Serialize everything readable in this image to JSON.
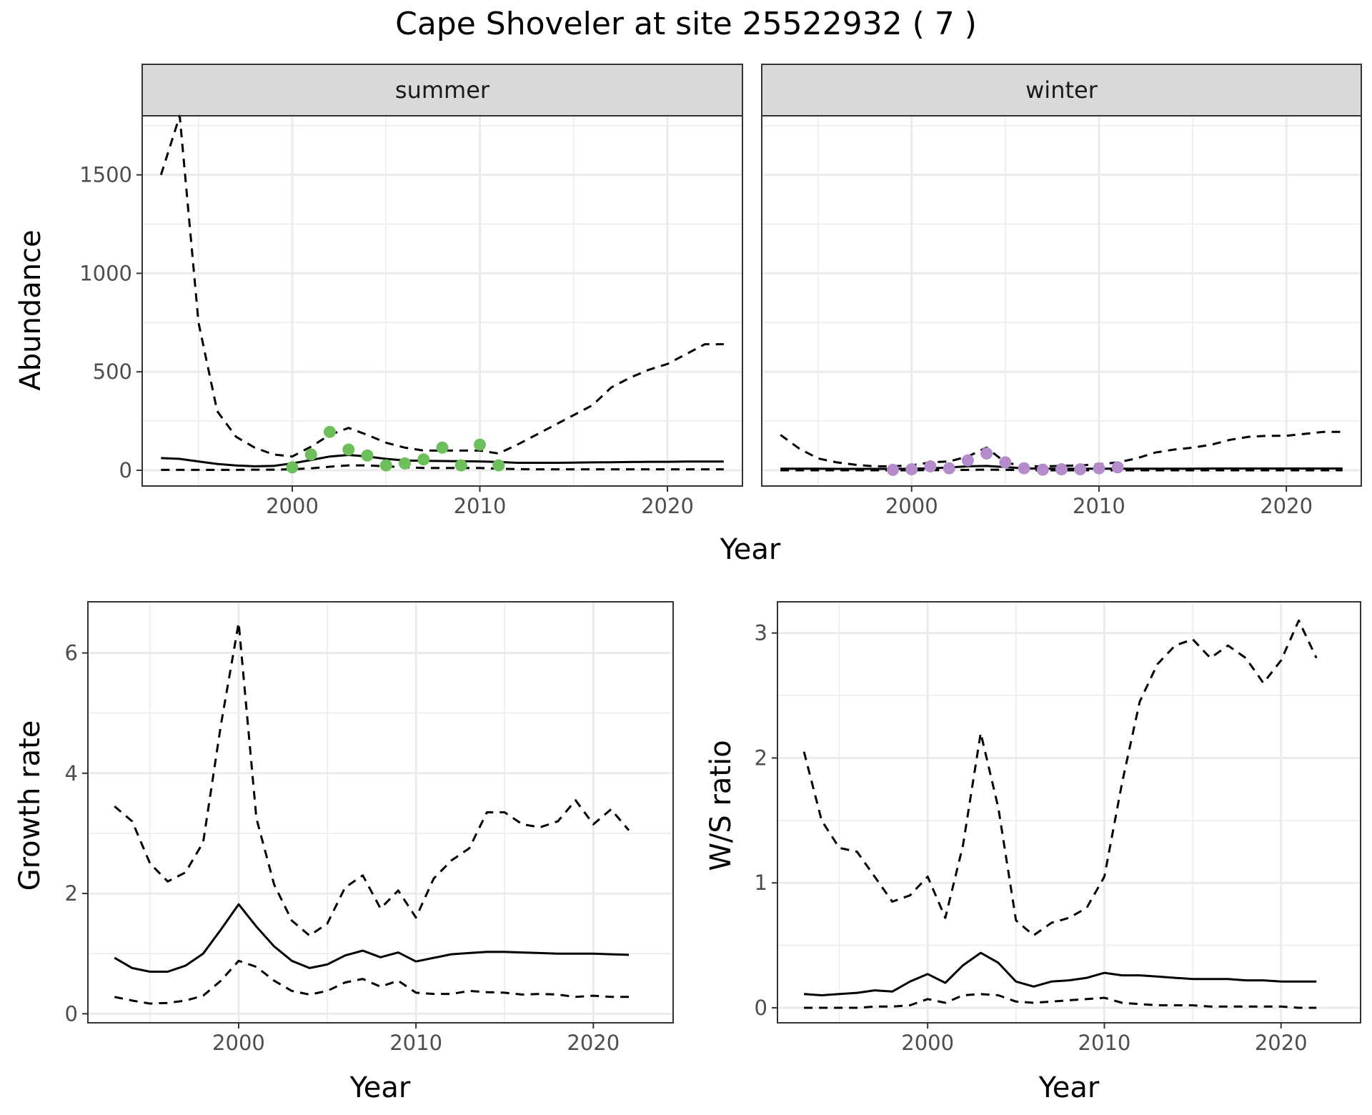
{
  "title": "Cape Shoveler at site 25522932 ( 7 )",
  "colors": {
    "summer_points": "#6cbf5a",
    "winter_points": "#b48ccb",
    "lines": "#000000",
    "grid": "#ebebeb",
    "strip_fill": "#d9d9d9"
  },
  "chart_data": [
    {
      "id": "summer",
      "type": "line",
      "facet_label": "summer",
      "xlabel": "Year",
      "ylabel": "Abundance",
      "xlim": [
        1992,
        2024
      ],
      "ylim": [
        -80,
        1800
      ],
      "xticks": [
        2000,
        2010,
        2020
      ],
      "yticks": [
        0,
        500,
        1000,
        1500
      ],
      "grid": true,
      "x": [
        1993,
        1994,
        1995,
        1996,
        1997,
        1998,
        1999,
        2000,
        2001,
        2002,
        2003,
        2004,
        2005,
        2006,
        2007,
        2008,
        2009,
        2010,
        2011,
        2012,
        2013,
        2014,
        2015,
        2016,
        2017,
        2018,
        2019,
        2020,
        2021,
        2022,
        2023
      ],
      "series": [
        {
          "role": "estimate",
          "dash": "solid",
          "values": [
            62,
            58,
            45,
            32,
            24,
            20,
            22,
            35,
            52,
            70,
            78,
            70,
            58,
            50,
            48,
            47,
            46,
            45,
            42,
            38,
            38,
            38,
            39,
            40,
            41,
            42,
            43,
            43,
            44,
            44,
            44
          ]
        },
        {
          "role": "upper",
          "dash": "dashed",
          "values": [
            1500,
            1800,
            750,
            300,
            170,
            115,
            80,
            70,
            120,
            180,
            215,
            180,
            140,
            115,
            100,
            100,
            100,
            100,
            85,
            130,
            180,
            230,
            280,
            330,
            420,
            470,
            510,
            540,
            590,
            640,
            640
          ]
        },
        {
          "role": "lower",
          "dash": "dashed",
          "values": [
            2,
            2,
            2,
            2,
            2,
            3,
            3,
            5,
            10,
            18,
            25,
            25,
            20,
            15,
            12,
            12,
            12,
            12,
            8,
            6,
            5,
            5,
            5,
            5,
            5,
            5,
            5,
            5,
            5,
            5,
            5
          ]
        }
      ],
      "points": {
        "x": [
          2000,
          2001,
          2002,
          2003,
          2004,
          2005,
          2006,
          2007,
          2008,
          2009,
          2010,
          2011
        ],
        "y": [
          15,
          80,
          195,
          105,
          75,
          25,
          35,
          55,
          115,
          25,
          130,
          25
        ]
      }
    },
    {
      "id": "winter",
      "type": "line",
      "facet_label": "winter",
      "xlabel": "Year",
      "ylabel": "Abundance",
      "xlim": [
        1992,
        2024
      ],
      "ylim": [
        -80,
        1800
      ],
      "xticks": [
        2000,
        2010,
        2020
      ],
      "yticks": [
        0,
        500,
        1000,
        1500
      ],
      "grid": true,
      "x": [
        1993,
        1994,
        1995,
        1996,
        1997,
        1998,
        1999,
        2000,
        2001,
        2002,
        2003,
        2004,
        2005,
        2006,
        2007,
        2008,
        2009,
        2010,
        2011,
        2012,
        2013,
        2014,
        2015,
        2016,
        2017,
        2018,
        2019,
        2020,
        2021,
        2022,
        2023
      ],
      "series": [
        {
          "role": "estimate",
          "dash": "solid",
          "values": [
            8,
            8,
            8,
            7,
            7,
            7,
            7,
            8,
            10,
            14,
            20,
            22,
            16,
            10,
            8,
            8,
            8,
            8,
            8,
            8,
            8,
            8,
            8,
            9,
            9,
            9,
            9,
            9,
            9,
            9,
            9
          ]
        },
        {
          "role": "upper",
          "dash": "dashed",
          "values": [
            180,
            110,
            60,
            40,
            28,
            20,
            20,
            25,
            40,
            45,
            70,
            115,
            40,
            20,
            20,
            22,
            25,
            30,
            40,
            60,
            90,
            105,
            115,
            130,
            155,
            170,
            175,
            175,
            185,
            195,
            195
          ]
        },
        {
          "role": "lower",
          "dash": "dashed",
          "values": [
            0,
            0,
            0,
            0,
            0,
            0,
            0,
            0,
            1,
            1,
            2,
            3,
            2,
            1,
            0,
            0,
            0,
            0,
            0,
            0,
            0,
            0,
            0,
            0,
            0,
            0,
            0,
            0,
            0,
            0,
            0
          ]
        }
      ],
      "points": {
        "x": [
          1999,
          2000,
          2001,
          2002,
          2003,
          2004,
          2005,
          2006,
          2007,
          2008,
          2009,
          2010,
          2011
        ],
        "y": [
          2,
          5,
          20,
          10,
          50,
          85,
          40,
          10,
          3,
          5,
          5,
          10,
          15
        ]
      }
    },
    {
      "id": "growth",
      "type": "line",
      "xlabel": "Year",
      "ylabel": "Growth rate",
      "xlim": [
        1991.5,
        2024.5
      ],
      "ylim": [
        -0.15,
        6.85
      ],
      "xticks": [
        2000,
        2010,
        2020
      ],
      "yticks": [
        0,
        2,
        4,
        6
      ],
      "grid": true,
      "x": [
        1993,
        1994,
        1995,
        1996,
        1997,
        1998,
        1999,
        2000,
        2001,
        2002,
        2003,
        2004,
        2005,
        2006,
        2007,
        2008,
        2009,
        2010,
        2011,
        2012,
        2013,
        2014,
        2015,
        2016,
        2017,
        2018,
        2019,
        2020,
        2021,
        2022
      ],
      "series": [
        {
          "role": "estimate",
          "dash": "solid",
          "values": [
            0.93,
            0.76,
            0.7,
            0.7,
            0.8,
            1.0,
            1.4,
            1.82,
            1.45,
            1.12,
            0.88,
            0.76,
            0.82,
            0.97,
            1.05,
            0.94,
            1.02,
            0.87,
            0.93,
            0.99,
            1.01,
            1.03,
            1.03,
            1.02,
            1.01,
            1.0,
            1.0,
            1.0,
            0.99,
            0.98
          ]
        },
        {
          "role": "upper",
          "dash": "dashed",
          "values": [
            3.45,
            3.2,
            2.5,
            2.2,
            2.35,
            2.85,
            4.8,
            6.5,
            3.25,
            2.15,
            1.55,
            1.3,
            1.5,
            2.1,
            2.3,
            1.75,
            2.05,
            1.6,
            2.25,
            2.55,
            2.75,
            3.35,
            3.35,
            3.15,
            3.1,
            3.2,
            3.55,
            3.15,
            3.4,
            3.05
          ]
        },
        {
          "role": "lower",
          "dash": "dashed",
          "values": [
            0.28,
            0.22,
            0.17,
            0.18,
            0.22,
            0.3,
            0.55,
            0.88,
            0.78,
            0.55,
            0.38,
            0.32,
            0.38,
            0.52,
            0.58,
            0.45,
            0.55,
            0.35,
            0.33,
            0.33,
            0.38,
            0.36,
            0.35,
            0.32,
            0.33,
            0.32,
            0.28,
            0.3,
            0.28,
            0.28
          ]
        }
      ]
    },
    {
      "id": "ratio",
      "type": "line",
      "xlabel": "Year",
      "ylabel": "W/S ratio",
      "xlim": [
        1991.5,
        2024.5
      ],
      "ylim": [
        -0.12,
        3.25
      ],
      "xticks": [
        2000,
        2010,
        2020
      ],
      "yticks": [
        0,
        1,
        2,
        3
      ],
      "grid": true,
      "x": [
        1993,
        1994,
        1995,
        1996,
        1997,
        1998,
        1999,
        2000,
        2001,
        2002,
        2003,
        2004,
        2005,
        2006,
        2007,
        2008,
        2009,
        2010,
        2011,
        2012,
        2013,
        2014,
        2015,
        2016,
        2017,
        2018,
        2019,
        2020,
        2021,
        2022
      ],
      "series": [
        {
          "role": "estimate",
          "dash": "solid",
          "values": [
            0.11,
            0.1,
            0.11,
            0.12,
            0.14,
            0.13,
            0.21,
            0.27,
            0.2,
            0.34,
            0.44,
            0.36,
            0.21,
            0.17,
            0.21,
            0.22,
            0.24,
            0.28,
            0.26,
            0.26,
            0.25,
            0.24,
            0.23,
            0.23,
            0.23,
            0.22,
            0.22,
            0.21,
            0.21,
            0.21
          ]
        },
        {
          "role": "upper",
          "dash": "dashed",
          "values": [
            2.05,
            1.5,
            1.28,
            1.25,
            1.05,
            0.85,
            0.9,
            1.05,
            0.72,
            1.3,
            2.2,
            1.6,
            0.7,
            0.58,
            0.68,
            0.72,
            0.8,
            1.05,
            1.8,
            2.45,
            2.75,
            2.9,
            2.95,
            2.8,
            2.9,
            2.8,
            2.6,
            2.78,
            3.1,
            2.8
          ]
        },
        {
          "role": "lower",
          "dash": "dashed",
          "values": [
            0.0,
            0.0,
            0.0,
            0.0,
            0.01,
            0.01,
            0.02,
            0.07,
            0.04,
            0.1,
            0.11,
            0.1,
            0.05,
            0.04,
            0.05,
            0.06,
            0.07,
            0.08,
            0.04,
            0.03,
            0.02,
            0.02,
            0.02,
            0.01,
            0.01,
            0.01,
            0.01,
            0.01,
            0.0,
            0.0
          ]
        }
      ]
    }
  ]
}
